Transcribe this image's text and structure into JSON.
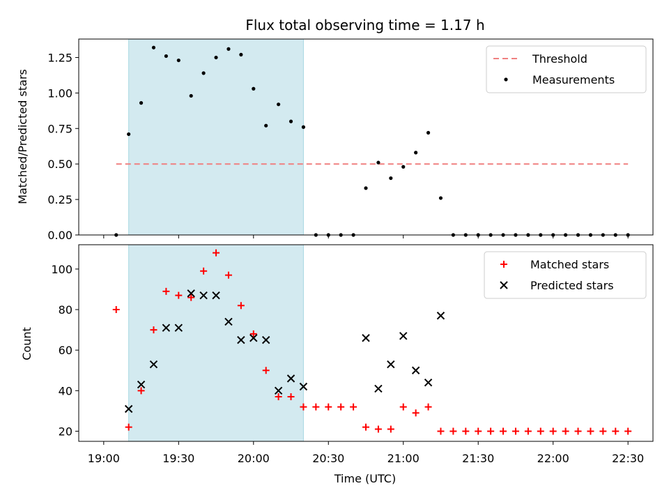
{
  "chart_data": [
    {
      "type": "scatter",
      "title": "Flux total observing time = 1.17 h",
      "xlabel": "",
      "ylabel": "Matched/Predicted stars",
      "ylim": [
        0,
        1.38
      ],
      "yticks": [
        0.0,
        0.25,
        0.5,
        0.75,
        1.0,
        1.25
      ],
      "ytick_labels": [
        "0.00",
        "0.25",
        "0.50",
        "0.75",
        "1.00",
        "1.25"
      ],
      "xlim": [
        "18:50",
        "22:40"
      ],
      "highlight_span": {
        "from": "19:10",
        "to": "20:20",
        "color": "#d3eaf0"
      },
      "legend_position": "top-right",
      "series": [
        {
          "name": "Threshold",
          "kind": "dashed-line",
          "color": "#f08080",
          "x": [
            "19:05",
            "22:30"
          ],
          "y": [
            0.5,
            0.5
          ]
        },
        {
          "name": "Measurements",
          "kind": "dots",
          "color": "#000000",
          "x": [
            "19:05",
            "19:10",
            "19:15",
            "19:20",
            "19:25",
            "19:30",
            "19:35",
            "19:40",
            "19:45",
            "19:50",
            "19:55",
            "20:00",
            "20:05",
            "20:10",
            "20:15",
            "20:20",
            "20:25",
            "20:30",
            "20:35",
            "20:40",
            "20:45",
            "20:50",
            "20:55",
            "21:00",
            "21:05",
            "21:10",
            "21:15",
            "21:20",
            "21:25",
            "21:30",
            "21:35",
            "21:40",
            "21:45",
            "21:50",
            "21:55",
            "22:00",
            "22:05",
            "22:10",
            "22:15",
            "22:20",
            "22:25",
            "22:30"
          ],
          "y": [
            0.0,
            0.71,
            0.93,
            1.32,
            1.26,
            1.23,
            0.98,
            1.14,
            1.25,
            1.31,
            1.27,
            1.03,
            0.77,
            0.92,
            0.8,
            0.76,
            0.0,
            0.0,
            0.0,
            0.0,
            0.33,
            0.51,
            0.4,
            0.48,
            0.58,
            0.72,
            0.26,
            0.0,
            0.0,
            0.0,
            0.0,
            0.0,
            0.0,
            0.0,
            0.0,
            0.0,
            0.0,
            0.0,
            0.0,
            0.0,
            0.0,
            0.0
          ]
        }
      ]
    },
    {
      "type": "scatter",
      "title": "",
      "xlabel": "Time (UTC)",
      "ylabel": "Count",
      "ylim": [
        15,
        112
      ],
      "yticks": [
        20,
        40,
        60,
        80,
        100
      ],
      "ytick_labels": [
        "20",
        "40",
        "60",
        "80",
        "100"
      ],
      "xlim": [
        "18:50",
        "22:40"
      ],
      "xticks": [
        "19:00",
        "19:30",
        "20:00",
        "20:30",
        "21:00",
        "21:30",
        "22:00",
        "22:30"
      ],
      "highlight_span": {
        "from": "19:10",
        "to": "20:20",
        "color": "#d3eaf0"
      },
      "legend_position": "top-right",
      "series": [
        {
          "name": "Matched stars",
          "kind": "plus",
          "color": "#ff0000",
          "x": [
            "19:05",
            "19:10",
            "19:15",
            "19:20",
            "19:25",
            "19:30",
            "19:35",
            "19:40",
            "19:45",
            "19:50",
            "19:55",
            "20:00",
            "20:05",
            "20:10",
            "20:15",
            "20:20",
            "20:25",
            "20:30",
            "20:35",
            "20:40",
            "20:45",
            "20:50",
            "20:55",
            "21:00",
            "21:05",
            "21:10",
            "21:15",
            "21:20",
            "21:25",
            "21:30",
            "21:35",
            "21:40",
            "21:45",
            "21:50",
            "21:55",
            "22:00",
            "22:05",
            "22:10",
            "22:15",
            "22:20",
            "22:25",
            "22:30"
          ],
          "y": [
            80,
            22,
            40,
            70,
            89,
            87,
            86,
            99,
            108,
            97,
            82,
            68,
            50,
            37,
            37,
            32,
            32,
            32,
            32,
            32,
            22,
            21,
            21,
            32,
            29,
            32,
            20,
            20,
            20,
            20,
            20,
            20,
            20,
            20,
            20,
            20,
            20,
            20,
            20,
            20,
            20,
            20
          ]
        },
        {
          "name": "Predicted stars",
          "kind": "x",
          "color": "#000000",
          "x": [
            "19:10",
            "19:15",
            "19:20",
            "19:25",
            "19:30",
            "19:35",
            "19:40",
            "19:45",
            "19:50",
            "19:55",
            "20:00",
            "20:05",
            "20:10",
            "20:15",
            "20:20",
            "20:45",
            "20:50",
            "20:55",
            "21:00",
            "21:05",
            "21:10",
            "21:15"
          ],
          "y": [
            31,
            43,
            53,
            71,
            71,
            88,
            87,
            87,
            74,
            65,
            66,
            65,
            40,
            46,
            42,
            66,
            41,
            53,
            67,
            50,
            44,
            77
          ]
        }
      ]
    }
  ]
}
